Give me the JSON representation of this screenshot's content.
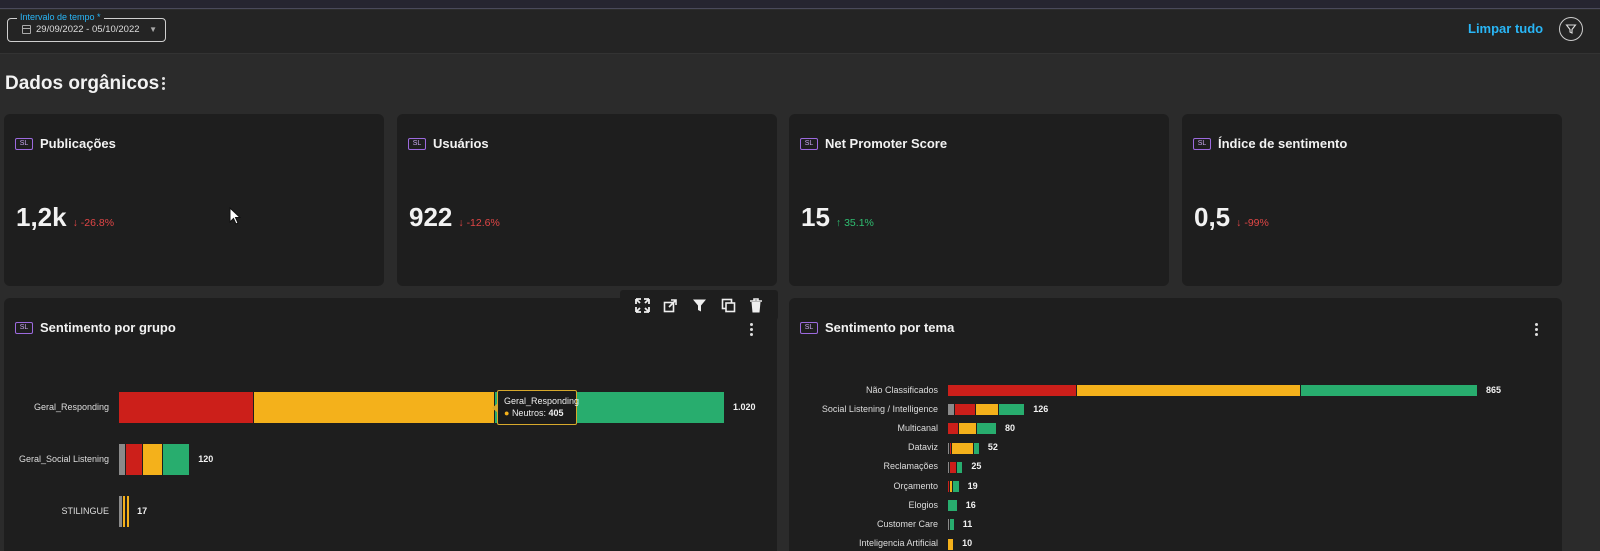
{
  "colors": {
    "negative": "#cc1f1a",
    "neutral": "#f4b11b",
    "positive": "#28ad6e",
    "unclassified": "#8a8a8a",
    "accent": "#29b6f6"
  },
  "filters": {
    "date_label": "Intervalo de tempo *",
    "date_value": "29/09/2022 - 05/10/2022",
    "clear_all": "Limpar tudo",
    "filter_icon": "funnel-icon"
  },
  "section": {
    "title": "Dados orgânicos",
    "menu_icon": "kebab-icon"
  },
  "kpis": [
    {
      "badge": "SL",
      "title": "Publicações",
      "value": "1,2k",
      "delta": "-26.8%",
      "trend": "down"
    },
    {
      "badge": "SL",
      "title": "Usuários",
      "value": "922",
      "delta": "-12.6%",
      "trend": "down"
    },
    {
      "badge": "SL",
      "title": "Net Promoter Score",
      "value": "15",
      "delta": "35.1%",
      "trend": "up"
    },
    {
      "badge": "SL",
      "title": "Índice de sentimento",
      "value": "0,5",
      "delta": "-99%",
      "trend": "down"
    }
  ],
  "widget_toolbar": [
    "expand-icon",
    "open-external-icon",
    "filter-icon",
    "duplicate-icon",
    "trash-icon"
  ],
  "group_chart": {
    "badge": "SL",
    "title": "Sentimento por grupo",
    "chart_data": {
      "type": "bar",
      "orientation": "horizontal",
      "stacked": true,
      "categories": [
        "Geral_Responding",
        "Geral_Social Listening",
        "STILINGUE"
      ],
      "totals": [
        1020,
        120,
        17
      ],
      "segments": [
        [
          {
            "sentiment": "negative",
            "value": 228
          },
          {
            "sentiment": "neutral",
            "value": 405
          },
          {
            "sentiment": "positive",
            "value": 387
          }
        ],
        [
          {
            "sentiment": "unclassified",
            "value": 12
          },
          {
            "sentiment": "negative",
            "value": 29
          },
          {
            "sentiment": "neutral",
            "value": 33
          },
          {
            "sentiment": "positive",
            "value": 46
          }
        ],
        [
          {
            "sentiment": "unclassified",
            "value": 6
          },
          {
            "sentiment": "neutral",
            "value": 5
          },
          {
            "sentiment": "negative",
            "value": 1
          },
          {
            "sentiment": "neutral",
            "value": 5
          }
        ]
      ],
      "max": 1020
    },
    "tooltip": {
      "title": "Geral_Responding",
      "label": "Neutros:",
      "value": "405"
    }
  },
  "theme_chart": {
    "badge": "SL",
    "title": "Sentimento por tema",
    "chart_data": {
      "type": "bar",
      "orientation": "horizontal",
      "stacked": true,
      "categories": [
        "Não Classificados",
        "Social Listening / Intelligence",
        "Multicanal",
        "Dataviz",
        "Reclamações",
        "Orçamento",
        "Elogios",
        "Customer Care",
        "Inteligencia Artificial"
      ],
      "totals": [
        865,
        126,
        80,
        52,
        25,
        19,
        16,
        11,
        10
      ],
      "segments": [
        [
          {
            "sentiment": "negative",
            "value": 211
          },
          {
            "sentiment": "neutral",
            "value": 365
          },
          {
            "sentiment": "positive",
            "value": 289
          }
        ],
        [
          {
            "sentiment": "unclassified",
            "value": 12
          },
          {
            "sentiment": "negative",
            "value": 34
          },
          {
            "sentiment": "neutral",
            "value": 37
          },
          {
            "sentiment": "positive",
            "value": 43
          }
        ],
        [
          {
            "sentiment": "negative",
            "value": 18
          },
          {
            "sentiment": "neutral",
            "value": 30
          },
          {
            "sentiment": "positive",
            "value": 32
          }
        ],
        [
          {
            "sentiment": "unclassified",
            "value": 3
          },
          {
            "sentiment": "negative",
            "value": 3
          },
          {
            "sentiment": "neutral",
            "value": 36
          },
          {
            "sentiment": "positive",
            "value": 10
          }
        ],
        [
          {
            "sentiment": "unclassified",
            "value": 3
          },
          {
            "sentiment": "negative",
            "value": 11
          },
          {
            "sentiment": "positive",
            "value": 11
          }
        ],
        [
          {
            "sentiment": "negative",
            "value": 3
          },
          {
            "sentiment": "neutral",
            "value": 5
          },
          {
            "sentiment": "positive",
            "value": 11
          }
        ],
        [
          {
            "sentiment": "positive",
            "value": 16
          }
        ],
        [
          {
            "sentiment": "unclassified",
            "value": 4
          },
          {
            "sentiment": "positive",
            "value": 7
          }
        ],
        [
          {
            "sentiment": "neutral",
            "value": 10
          }
        ]
      ],
      "max": 865
    }
  }
}
